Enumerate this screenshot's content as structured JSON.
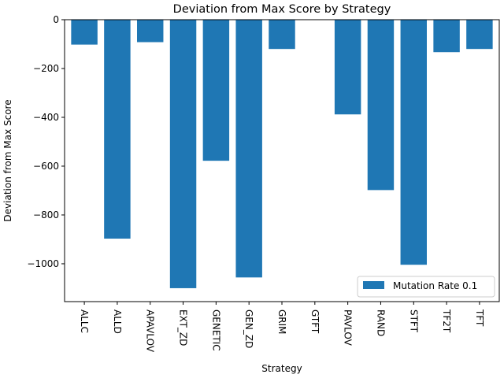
{
  "chart_data": {
    "type": "bar",
    "title": "Deviation from Max Score by Strategy",
    "xlabel": "Strategy",
    "ylabel": "Deviation from Max Score",
    "categories": [
      "ALLC",
      "ALLD",
      "APAVLOV",
      "EXT_ZD",
      "GENETIC",
      "GEN_ZD",
      "GRIM",
      "GTFT",
      "PAVLOV",
      "RAND",
      "STFT",
      "TF2T",
      "TFT"
    ],
    "series": [
      {
        "name": "Mutation Rate 0.1",
        "color": "#1f77b4",
        "values": [
          -102,
          -897,
          -92,
          -1100,
          -578,
          -1056,
          -120,
          0,
          -388,
          -698,
          -1004,
          -133,
          -120
        ]
      }
    ],
    "ylim": [
      -1155,
      0
    ],
    "yticks": [
      0,
      -200,
      -400,
      -600,
      -800,
      -1000
    ],
    "ytick_labels": [
      "0",
      "−200",
      "−400",
      "−600",
      "−800",
      "−1000"
    ],
    "grid": false,
    "legend_position": "lower-right"
  }
}
